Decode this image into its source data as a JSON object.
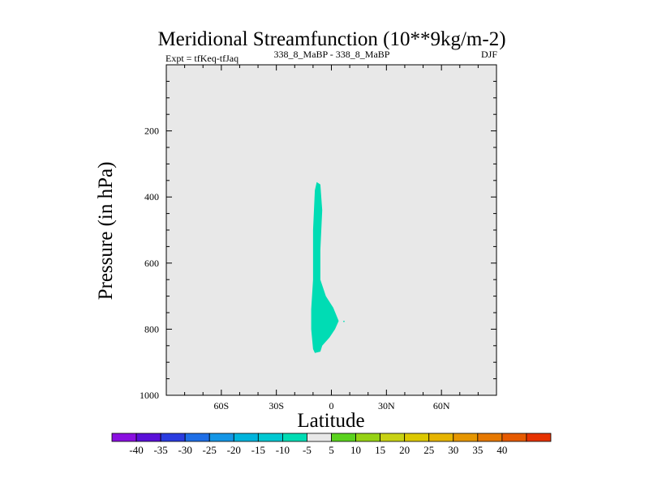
{
  "chart_data": {
    "type": "heatmap",
    "title": "Meridional Streamfunction (10**9kg/m-2)",
    "left_string": "Expt = tfKeq-tfJaq",
    "center_string": "338_8_MaBP - 338_8_MaBP",
    "right_string": "DJF",
    "xlabel": "Latitude",
    "ylabel": "Pressure (in hPa)",
    "xlim": [
      -90,
      90
    ],
    "ylim": [
      1000,
      0
    ],
    "x_ticks": [
      {
        "value": -60,
        "label": "60S"
      },
      {
        "value": -30,
        "label": "30S"
      },
      {
        "value": 0,
        "label": "0"
      },
      {
        "value": 30,
        "label": "30N"
      },
      {
        "value": 60,
        "label": "60N"
      }
    ],
    "y_ticks": [
      {
        "value": 200,
        "label": "200"
      },
      {
        "value": 400,
        "label": "400"
      },
      {
        "value": 600,
        "label": "600"
      },
      {
        "value": 800,
        "label": "800"
      },
      {
        "value": 1000,
        "label": "1000"
      }
    ],
    "background_color": "#e8e8e8",
    "contour_regions": [
      {
        "level": "-10 to -5",
        "color": "#00dcb4",
        "polygon": [
          [
            -8,
            355
          ],
          [
            -6,
            362
          ],
          [
            -5,
            440
          ],
          [
            -6,
            560
          ],
          [
            -6,
            650
          ],
          [
            -3,
            700
          ],
          [
            1,
            735
          ],
          [
            4,
            775
          ],
          [
            2,
            800
          ],
          [
            -1,
            825
          ],
          [
            -5,
            850
          ],
          [
            -6,
            868
          ],
          [
            -9,
            872
          ],
          [
            -10,
            860
          ],
          [
            -11,
            800
          ],
          [
            -11,
            740
          ],
          [
            -10,
            650
          ],
          [
            -10,
            500
          ],
          [
            -9,
            380
          ]
        ]
      }
    ],
    "colorbar": {
      "colors": [
        "#8a10e0",
        "#5a10d8",
        "#2a3ce0",
        "#1e6ee6",
        "#1496e6",
        "#00b4dc",
        "#00c8d2",
        "#00dcb4",
        "#e8e8e8",
        "#5ad21e",
        "#96d214",
        "#c8d214",
        "#dcc800",
        "#e6b400",
        "#e69600",
        "#e67800",
        "#e65a00",
        "#e63200"
      ],
      "labels": [
        "-40",
        "-35",
        "-30",
        "-25",
        "-20",
        "-15",
        "-10",
        "-5",
        "5",
        "10",
        "15",
        "20",
        "25",
        "30",
        "35",
        "40"
      ]
    }
  }
}
